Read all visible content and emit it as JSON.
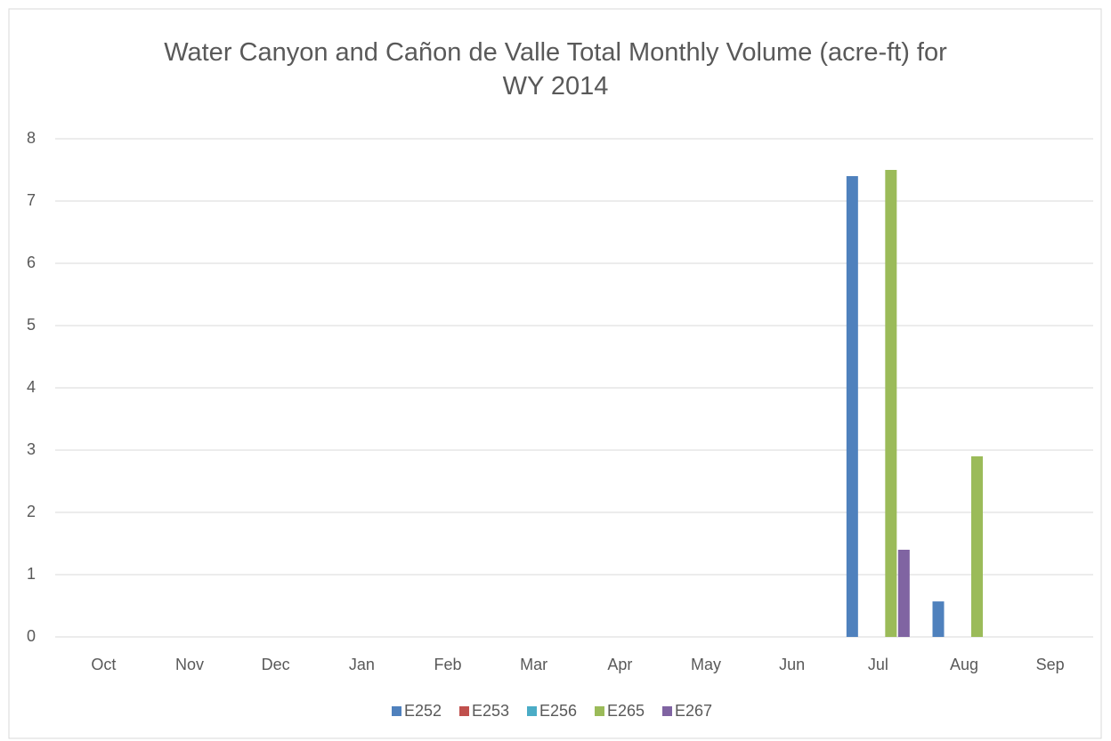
{
  "chart_data": {
    "type": "bar",
    "title": "Water Canyon and Cañon de Valle Total Monthly Volume (acre-ft) for WY 2014",
    "categories": [
      "Oct",
      "Nov",
      "Dec",
      "Jan",
      "Feb",
      "Mar",
      "Apr",
      "May",
      "Jun",
      "Jul",
      "Aug",
      "Sep"
    ],
    "series": [
      {
        "name": "E252",
        "color": "#4f81bd",
        "values": [
          0,
          0,
          0,
          0,
          0,
          0,
          0,
          0,
          0,
          7.4,
          0.57,
          0
        ]
      },
      {
        "name": "E253",
        "color": "#c0504d",
        "values": [
          0,
          0,
          0,
          0,
          0,
          0,
          0,
          0,
          0,
          0,
          0,
          0
        ]
      },
      {
        "name": "E256",
        "color": "#4bacc6",
        "values": [
          0,
          0,
          0,
          0,
          0,
          0,
          0,
          0,
          0,
          0,
          0,
          0
        ]
      },
      {
        "name": "E265",
        "color": "#9bbb59",
        "values": [
          0,
          0,
          0,
          0,
          0,
          0,
          0,
          0,
          0,
          7.5,
          2.9,
          0
        ]
      },
      {
        "name": "E267",
        "color": "#8064a2",
        "values": [
          0,
          0,
          0,
          0,
          0,
          0,
          0,
          0,
          0,
          1.4,
          0,
          0
        ]
      }
    ],
    "ylim": [
      0,
      8
    ],
    "yticks": [
      0,
      1,
      2,
      3,
      4,
      5,
      6,
      7,
      8
    ],
    "grid": true,
    "legend": "bottom"
  }
}
